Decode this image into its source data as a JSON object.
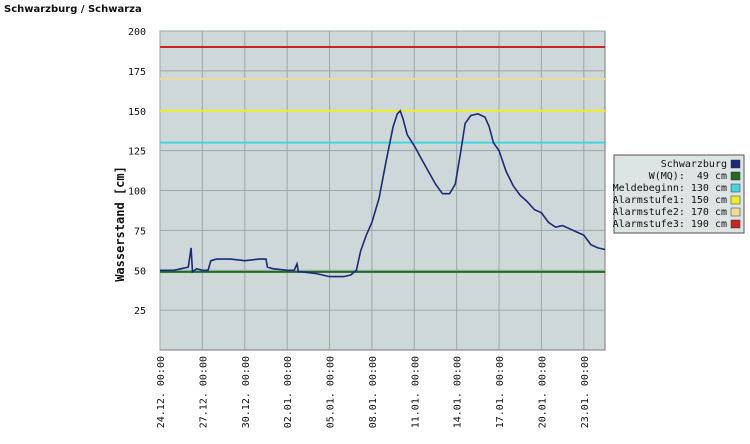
{
  "chart_data": {
    "type": "line",
    "title": "Schwarzburg / Schwarza",
    "y_label": "Wasserstand [cm]",
    "x": [
      0,
      0.5,
      1,
      1.5,
      2,
      2.2,
      2.3,
      2.6,
      3,
      3.4,
      3.6,
      4,
      5,
      6,
      7,
      7.5,
      7.6,
      8,
      9,
      9.5,
      9.7,
      9.8,
      10,
      11,
      12,
      13,
      13.5,
      13.9,
      14.2,
      14.6,
      15,
      15.5,
      16,
      16.5,
      16.8,
      17,
      17.2,
      17.5,
      18,
      18.5,
      19,
      19.5,
      20,
      20.5,
      20.9,
      21.3,
      21.6,
      22,
      22.5,
      23,
      23.3,
      23.6,
      24,
      24.5,
      25,
      25.5,
      26,
      26.5,
      27,
      27.5,
      28,
      28.5,
      29,
      29.5,
      30,
      30.5,
      31,
      31.5
    ],
    "series": [
      {
        "name": "Schwarzburg",
        "color": "#1a2a7a",
        "values": [
          50,
          50,
          50,
          51,
          52,
          64,
          49,
          51,
          50,
          50,
          56,
          57,
          57,
          56,
          57,
          57,
          52,
          51,
          50,
          50,
          54,
          49,
          49,
          48,
          46,
          46,
          47,
          50,
          62,
          72,
          80,
          95,
          118,
          140,
          148,
          150,
          145,
          135,
          128,
          120,
          112,
          104,
          98,
          98,
          104,
          125,
          142,
          147,
          148,
          146,
          140,
          130,
          125,
          112,
          103,
          97,
          93,
          88,
          86,
          80,
          77,
          78,
          76,
          74,
          72,
          66,
          64,
          63
        ]
      }
    ],
    "thresholds": [
      {
        "name": "W(MQ):  49 cm",
        "value": 49,
        "color": "#1f6b1f"
      },
      {
        "name": "Meldebeginn: 130 cm",
        "value": 130,
        "color": "#44d4e0"
      },
      {
        "name": "Alarmstufe1: 150 cm",
        "value": 150,
        "color": "#eeee22"
      },
      {
        "name": "Alarmstufe2: 170 cm",
        "value": 170,
        "color": "#eedd99"
      },
      {
        "name": "Alarmstufe3: 190 cm",
        "value": 190,
        "color": "#cc2222"
      }
    ],
    "xlim": [
      0,
      31.5
    ],
    "xticks": [
      {
        "value": 0,
        "label": "24.12. 00:00"
      },
      {
        "value": 3,
        "label": "27.12. 00:00"
      },
      {
        "value": 6,
        "label": "30.12. 00:00"
      },
      {
        "value": 9,
        "label": "02.01. 00:00"
      },
      {
        "value": 12,
        "label": "05.01. 00:00"
      },
      {
        "value": 15,
        "label": "08.01. 00:00"
      },
      {
        "value": 18,
        "label": "11.01. 00:00"
      },
      {
        "value": 21,
        "label": "14.01. 00:00"
      },
      {
        "value": 24,
        "label": "17.01. 00:00"
      },
      {
        "value": 27,
        "label": "20.01. 00:00"
      },
      {
        "value": 30,
        "label": "23.01. 00:00"
      }
    ],
    "ylim": [
      0,
      200
    ],
    "yticks": [
      25,
      50,
      75,
      100,
      125,
      150,
      175,
      200
    ],
    "grid": true,
    "legend": "right"
  }
}
